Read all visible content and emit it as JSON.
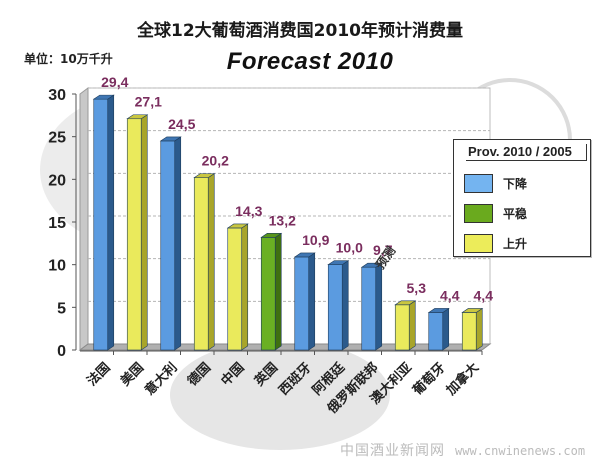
{
  "chart_data": {
    "type": "bar",
    "title": "全球12大葡萄酒消费国2010年预计消费量",
    "subtitle": "Forecast  2010",
    "unit_label": "单位：10万千升",
    "xlabel": "",
    "ylabel": "",
    "ylim": [
      0,
      30
    ],
    "yticks": [
      0,
      5,
      10,
      15,
      20,
      25,
      30
    ],
    "grid": true,
    "categories": [
      "法国",
      "美国",
      "意大利",
      "德国",
      "中国",
      "英国",
      "西班牙",
      "阿根廷",
      "俄罗斯联邦",
      "澳大利亚",
      "葡萄牙",
      "加拿大"
    ],
    "values": [
      29.4,
      27.1,
      24.5,
      20.2,
      14.3,
      13.2,
      10.9,
      10.0,
      9.7,
      5.3,
      4.4,
      4.4
    ],
    "value_labels": [
      "29,4",
      "27,1",
      "24,5",
      "20,2",
      "14,3",
      "13,2",
      "10,9",
      "10,0",
      "9,7",
      "5,3",
      "4,4",
      "4,4"
    ],
    "trend": [
      "down",
      "up",
      "down",
      "up",
      "up",
      "stable",
      "down",
      "down",
      "down",
      "up",
      "down",
      "up"
    ],
    "annotation": "预测",
    "legend": {
      "title": "Prov. 2010 / 2005",
      "placement": "right",
      "items": [
        {
          "key": "down",
          "label": "下降",
          "color": "#74b4f0"
        },
        {
          "key": "stable",
          "label": "平稳",
          "color": "#6aaa1e"
        },
        {
          "key": "up",
          "label": "上升",
          "color": "#ecec5a"
        }
      ]
    },
    "colors": {
      "down": {
        "front": "#5b9be0",
        "side": "#2b5a8c",
        "top": "#3f76b3"
      },
      "stable": {
        "front": "#6ab023",
        "side": "#3f7010",
        "top": "#58951a"
      },
      "up": {
        "front": "#eaea5c",
        "side": "#a8a52a",
        "top": "#c9c640"
      },
      "value_label": "#7a2d5e"
    }
  },
  "watermark": {
    "site": "中国酒业新闻网",
    "url": "www.cnwinenews.com"
  }
}
